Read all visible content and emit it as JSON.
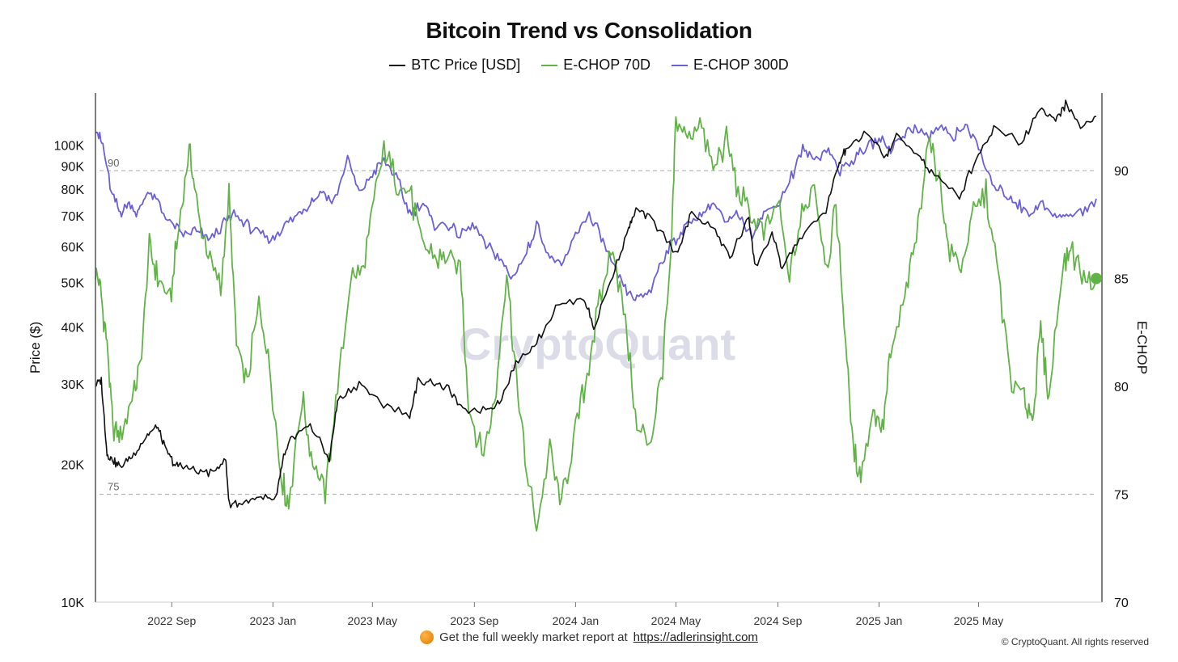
{
  "chart_data": {
    "type": "line",
    "title": "Bitcoin Trend vs Consolidation",
    "watermark": "CryptoQuant",
    "legend_position": "top-center",
    "y_left": {
      "label": "Price ($)",
      "scale": "log",
      "range": [
        10000,
        130000
      ],
      "ticks": [
        {
          "value": 10000,
          "label": "10K"
        },
        {
          "value": 20000,
          "label": "20K"
        },
        {
          "value": 30000,
          "label": "30K"
        },
        {
          "value": 40000,
          "label": "40K"
        },
        {
          "value": 50000,
          "label": "50K"
        },
        {
          "value": 60000,
          "label": "60K"
        },
        {
          "value": 70000,
          "label": "70K"
        },
        {
          "value": 80000,
          "label": "80K"
        },
        {
          "value": 90000,
          "label": "90K"
        },
        {
          "value": 100000,
          "label": "100K"
        }
      ]
    },
    "y_right": {
      "label": "E-CHOP",
      "range": [
        70,
        93.6
      ],
      "ticks": [
        {
          "value": 70,
          "label": "70"
        },
        {
          "value": 75,
          "label": "75"
        },
        {
          "value": 80,
          "label": "80"
        },
        {
          "value": 85,
          "label": "85"
        },
        {
          "value": 90,
          "label": "90"
        }
      ]
    },
    "x_axis": {
      "range": [
        "2022-06-01",
        "2025-09-20"
      ],
      "ticks": [
        {
          "date": "2022-09-01",
          "label": "2022 Sep"
        },
        {
          "date": "2023-01-01",
          "label": "2023 Jan"
        },
        {
          "date": "2023-05-01",
          "label": "2023 May"
        },
        {
          "date": "2023-09-01",
          "label": "2023 Sep"
        },
        {
          "date": "2024-01-01",
          "label": "2024 Jan"
        },
        {
          "date": "2024-05-01",
          "label": "2024 May"
        },
        {
          "date": "2024-09-01",
          "label": "2024 Sep"
        },
        {
          "date": "2025-01-01",
          "label": "2025 Jan"
        },
        {
          "date": "2025-05-01",
          "label": "2025 May"
        }
      ]
    },
    "reference_lines": [
      {
        "value": 90,
        "label": "90",
        "axis": "right"
      },
      {
        "value": 75,
        "label": "75",
        "axis": "right"
      }
    ],
    "series": [
      {
        "name": "BTC Price [USD]",
        "axis": "left",
        "color": "#111111",
        "points": [
          [
            "2022-06-01",
            30000
          ],
          [
            "2022-06-08",
            30500
          ],
          [
            "2022-06-15",
            21000
          ],
          [
            "2022-06-22",
            20500
          ],
          [
            "2022-07-01",
            19800
          ],
          [
            "2022-07-15",
            20800
          ],
          [
            "2022-08-01",
            23000
          ],
          [
            "2022-08-14",
            24200
          ],
          [
            "2022-08-25",
            21500
          ],
          [
            "2022-09-05",
            20000
          ],
          [
            "2022-09-15",
            19800
          ],
          [
            "2022-10-01",
            19300
          ],
          [
            "2022-10-20",
            19200
          ],
          [
            "2022-11-05",
            20500
          ],
          [
            "2022-11-09",
            16500
          ],
          [
            "2022-11-25",
            16500
          ],
          [
            "2022-12-15",
            16800
          ],
          [
            "2023-01-05",
            16900
          ],
          [
            "2023-01-14",
            20800
          ],
          [
            "2023-01-25",
            23000
          ],
          [
            "2023-02-15",
            24500
          ],
          [
            "2023-03-10",
            20500
          ],
          [
            "2023-03-20",
            27500
          ],
          [
            "2023-04-15",
            30200
          ],
          [
            "2023-05-10",
            27500
          ],
          [
            "2023-06-15",
            25500
          ],
          [
            "2023-06-25",
            30500
          ],
          [
            "2023-07-15",
            30200
          ],
          [
            "2023-08-01",
            29300
          ],
          [
            "2023-08-18",
            26200
          ],
          [
            "2023-09-15",
            26500
          ],
          [
            "2023-10-01",
            27500
          ],
          [
            "2023-10-24",
            34000
          ],
          [
            "2023-11-15",
            37000
          ],
          [
            "2023-12-08",
            44000
          ],
          [
            "2024-01-11",
            46500
          ],
          [
            "2024-01-23",
            39900
          ],
          [
            "2024-02-15",
            52000
          ],
          [
            "2024-03-05",
            66000
          ],
          [
            "2024-03-14",
            72000
          ],
          [
            "2024-04-01",
            69500
          ],
          [
            "2024-05-01",
            58000
          ],
          [
            "2024-05-20",
            70500
          ],
          [
            "2024-06-15",
            66000
          ],
          [
            "2024-07-05",
            57000
          ],
          [
            "2024-07-28",
            69000
          ],
          [
            "2024-08-05",
            54000
          ],
          [
            "2024-08-25",
            64000
          ],
          [
            "2024-09-06",
            54000
          ],
          [
            "2024-09-30",
            63500
          ],
          [
            "2024-10-29",
            72000
          ],
          [
            "2024-11-13",
            90000
          ],
          [
            "2024-11-22",
            98000
          ],
          [
            "2024-12-17",
            106000
          ],
          [
            "2025-01-10",
            94000
          ],
          [
            "2025-01-22",
            105000
          ],
          [
            "2025-02-15",
            96500
          ],
          [
            "2025-03-05",
            87000
          ],
          [
            "2025-04-08",
            77000
          ],
          [
            "2025-05-01",
            96500
          ],
          [
            "2025-05-22",
            110000
          ],
          [
            "2025-06-22",
            101000
          ],
          [
            "2025-07-14",
            121000
          ],
          [
            "2025-08-02",
            113000
          ],
          [
            "2025-08-14",
            123000
          ],
          [
            "2025-09-01",
            109000
          ],
          [
            "2025-09-20",
            115500
          ]
        ]
      },
      {
        "name": "E-CHOP 70D",
        "axis": "right",
        "color": "#62b347",
        "points": [
          [
            "2022-06-01",
            85.5
          ],
          [
            "2022-06-08",
            84.2
          ],
          [
            "2022-06-15",
            82.0
          ],
          [
            "2022-06-22",
            78.0
          ],
          [
            "2022-07-01",
            77.5
          ],
          [
            "2022-07-15",
            79.5
          ],
          [
            "2022-07-25",
            81.0
          ],
          [
            "2022-08-05",
            86.5
          ],
          [
            "2022-08-15",
            85.0
          ],
          [
            "2022-08-30",
            84.0
          ],
          [
            "2022-09-10",
            87.5
          ],
          [
            "2022-09-22",
            91.0
          ],
          [
            "2022-10-01",
            88.5
          ],
          [
            "2022-10-15",
            86.0
          ],
          [
            "2022-10-30",
            84.5
          ],
          [
            "2022-11-09",
            88.8
          ],
          [
            "2022-11-18",
            82.0
          ],
          [
            "2022-12-01",
            80.0
          ],
          [
            "2022-12-15",
            84.0
          ],
          [
            "2022-12-28",
            81.0
          ],
          [
            "2023-01-10",
            76.0
          ],
          [
            "2023-01-20",
            74.5
          ],
          [
            "2023-02-05",
            79.5
          ],
          [
            "2023-02-18",
            76.5
          ],
          [
            "2023-03-05",
            75.0
          ],
          [
            "2023-03-20",
            80.0
          ],
          [
            "2023-04-05",
            85.0
          ],
          [
            "2023-04-20",
            85.5
          ],
          [
            "2023-05-05",
            89.0
          ],
          [
            "2023-05-15",
            91.0
          ],
          [
            "2023-05-30",
            89.5
          ],
          [
            "2023-06-15",
            89.0
          ],
          [
            "2023-06-30",
            86.5
          ],
          [
            "2023-07-15",
            86.0
          ],
          [
            "2023-07-30",
            86.0
          ],
          [
            "2023-08-15",
            85.5
          ],
          [
            "2023-08-25",
            79.0
          ],
          [
            "2023-09-10",
            77.0
          ],
          [
            "2023-09-25",
            79.0
          ],
          [
            "2023-10-10",
            85.5
          ],
          [
            "2023-10-20",
            81.0
          ],
          [
            "2023-11-01",
            76.5
          ],
          [
            "2023-11-15",
            73.5
          ],
          [
            "2023-12-01",
            77.0
          ],
          [
            "2023-12-15",
            74.5
          ],
          [
            "2024-01-01",
            78.0
          ],
          [
            "2024-01-15",
            80.5
          ],
          [
            "2024-01-30",
            84.0
          ],
          [
            "2024-02-15",
            86.5
          ],
          [
            "2024-03-01",
            83.0
          ],
          [
            "2024-03-15",
            78.0
          ],
          [
            "2024-04-01",
            77.5
          ],
          [
            "2024-04-15",
            81.0
          ],
          [
            "2024-04-25",
            86.0
          ],
          [
            "2024-05-01",
            92.5
          ],
          [
            "2024-05-15",
            91.5
          ],
          [
            "2024-05-30",
            92.3
          ],
          [
            "2024-06-15",
            90.0
          ],
          [
            "2024-07-01",
            91.5
          ],
          [
            "2024-07-15",
            89.0
          ],
          [
            "2024-07-30",
            88.0
          ],
          [
            "2024-08-15",
            87.0
          ],
          [
            "2024-09-01",
            88.5
          ],
          [
            "2024-09-15",
            85.0
          ],
          [
            "2024-09-30",
            88.0
          ],
          [
            "2024-10-15",
            89.5
          ],
          [
            "2024-10-30",
            85.5
          ],
          [
            "2024-11-10",
            88.5
          ],
          [
            "2024-11-20",
            83.0
          ],
          [
            "2024-12-01",
            77.0
          ],
          [
            "2024-12-10",
            76.0
          ],
          [
            "2024-12-25",
            79.0
          ],
          [
            "2025-01-05",
            78.0
          ],
          [
            "2025-01-15",
            81.5
          ],
          [
            "2025-02-01",
            84.0
          ],
          [
            "2025-02-15",
            87.0
          ],
          [
            "2025-03-01",
            91.5
          ],
          [
            "2025-03-15",
            89.5
          ],
          [
            "2025-03-25",
            86.5
          ],
          [
            "2025-04-10",
            85.5
          ],
          [
            "2025-04-25",
            88.0
          ],
          [
            "2025-05-10",
            89.0
          ],
          [
            "2025-05-25",
            85.0
          ],
          [
            "2025-06-10",
            80.0
          ],
          [
            "2025-06-25",
            79.5
          ],
          [
            "2025-07-05",
            78.5
          ],
          [
            "2025-07-15",
            82.5
          ],
          [
            "2025-07-25",
            79.5
          ],
          [
            "2025-08-10",
            85.5
          ],
          [
            "2025-08-20",
            86.5
          ],
          [
            "2025-09-05",
            85.0
          ],
          [
            "2025-09-20",
            85.0
          ]
        ]
      },
      {
        "name": "E-CHOP 300D",
        "axis": "right",
        "color": "#6b5fd8",
        "points": [
          [
            "2022-06-01",
            92.0
          ],
          [
            "2022-06-10",
            91.2
          ],
          [
            "2022-06-20",
            89.0
          ],
          [
            "2022-07-01",
            88.0
          ],
          [
            "2022-07-10",
            88.5
          ],
          [
            "2022-07-22",
            88.0
          ],
          [
            "2022-08-01",
            89.0
          ],
          [
            "2022-08-15",
            88.5
          ],
          [
            "2022-09-01",
            87.5
          ],
          [
            "2022-09-15",
            87.0
          ],
          [
            "2022-10-01",
            87.2
          ],
          [
            "2022-10-15",
            86.8
          ],
          [
            "2022-11-01",
            87.5
          ],
          [
            "2022-11-15",
            88.0
          ],
          [
            "2022-12-01",
            87.5
          ],
          [
            "2022-12-15",
            87.0
          ],
          [
            "2023-01-01",
            86.8
          ],
          [
            "2023-01-15",
            87.5
          ],
          [
            "2023-02-01",
            88.0
          ],
          [
            "2023-02-15",
            88.5
          ],
          [
            "2023-03-01",
            89.0
          ],
          [
            "2023-03-15",
            88.5
          ],
          [
            "2023-04-01",
            90.5
          ],
          [
            "2023-04-15",
            89.0
          ],
          [
            "2023-05-01",
            89.8
          ],
          [
            "2023-05-15",
            90.5
          ],
          [
            "2023-06-01",
            89.5
          ],
          [
            "2023-06-15",
            88.0
          ],
          [
            "2023-07-01",
            88.5
          ],
          [
            "2023-07-15",
            87.5
          ],
          [
            "2023-08-01",
            87.5
          ],
          [
            "2023-08-15",
            87.0
          ],
          [
            "2023-09-01",
            87.5
          ],
          [
            "2023-09-15",
            86.5
          ],
          [
            "2023-10-01",
            86.0
          ],
          [
            "2023-10-15",
            85.0
          ],
          [
            "2023-11-01",
            86.0
          ],
          [
            "2023-11-15",
            87.5
          ],
          [
            "2023-12-01",
            86.0
          ],
          [
            "2023-12-15",
            85.5
          ],
          [
            "2024-01-01",
            87.0
          ],
          [
            "2024-01-15",
            88.0
          ],
          [
            "2024-02-01",
            87.0
          ],
          [
            "2024-02-15",
            85.5
          ],
          [
            "2024-03-01",
            84.5
          ],
          [
            "2024-03-15",
            84.0
          ],
          [
            "2024-04-01",
            84.5
          ],
          [
            "2024-04-15",
            86.0
          ],
          [
            "2024-05-01",
            86.8
          ],
          [
            "2024-05-15",
            87.5
          ],
          [
            "2024-06-01",
            88.0
          ],
          [
            "2024-06-15",
            88.5
          ],
          [
            "2024-07-01",
            87.5
          ],
          [
            "2024-07-15",
            88.0
          ],
          [
            "2024-08-01",
            87.0
          ],
          [
            "2024-08-15",
            88.0
          ],
          [
            "2024-09-01",
            88.5
          ],
          [
            "2024-09-15",
            89.5
          ],
          [
            "2024-10-01",
            91.0
          ],
          [
            "2024-10-15",
            90.5
          ],
          [
            "2024-11-01",
            91.0
          ],
          [
            "2024-11-15",
            90.0
          ],
          [
            "2024-12-01",
            90.5
          ],
          [
            "2024-12-15",
            91.0
          ],
          [
            "2025-01-01",
            91.5
          ],
          [
            "2025-01-15",
            91.0
          ],
          [
            "2025-02-01",
            91.8
          ],
          [
            "2025-02-15",
            92.0
          ],
          [
            "2025-03-01",
            91.5
          ],
          [
            "2025-03-15",
            92.0
          ],
          [
            "2025-04-01",
            91.5
          ],
          [
            "2025-04-15",
            92.2
          ],
          [
            "2025-05-01",
            91.0
          ],
          [
            "2025-05-15",
            89.5
          ],
          [
            "2025-06-01",
            89.0
          ],
          [
            "2025-06-15",
            88.5
          ],
          [
            "2025-07-01",
            88.0
          ],
          [
            "2025-07-15",
            88.5
          ],
          [
            "2025-08-01",
            87.8
          ],
          [
            "2025-08-15",
            88.0
          ],
          [
            "2025-09-01",
            88.0
          ],
          [
            "2025-09-20",
            88.7
          ]
        ]
      }
    ]
  },
  "footer": {
    "note": "Get the full weekly market report at",
    "link": "https://adlerinsight.com",
    "copyright": "© CryptoQuant. All rights reserved"
  }
}
